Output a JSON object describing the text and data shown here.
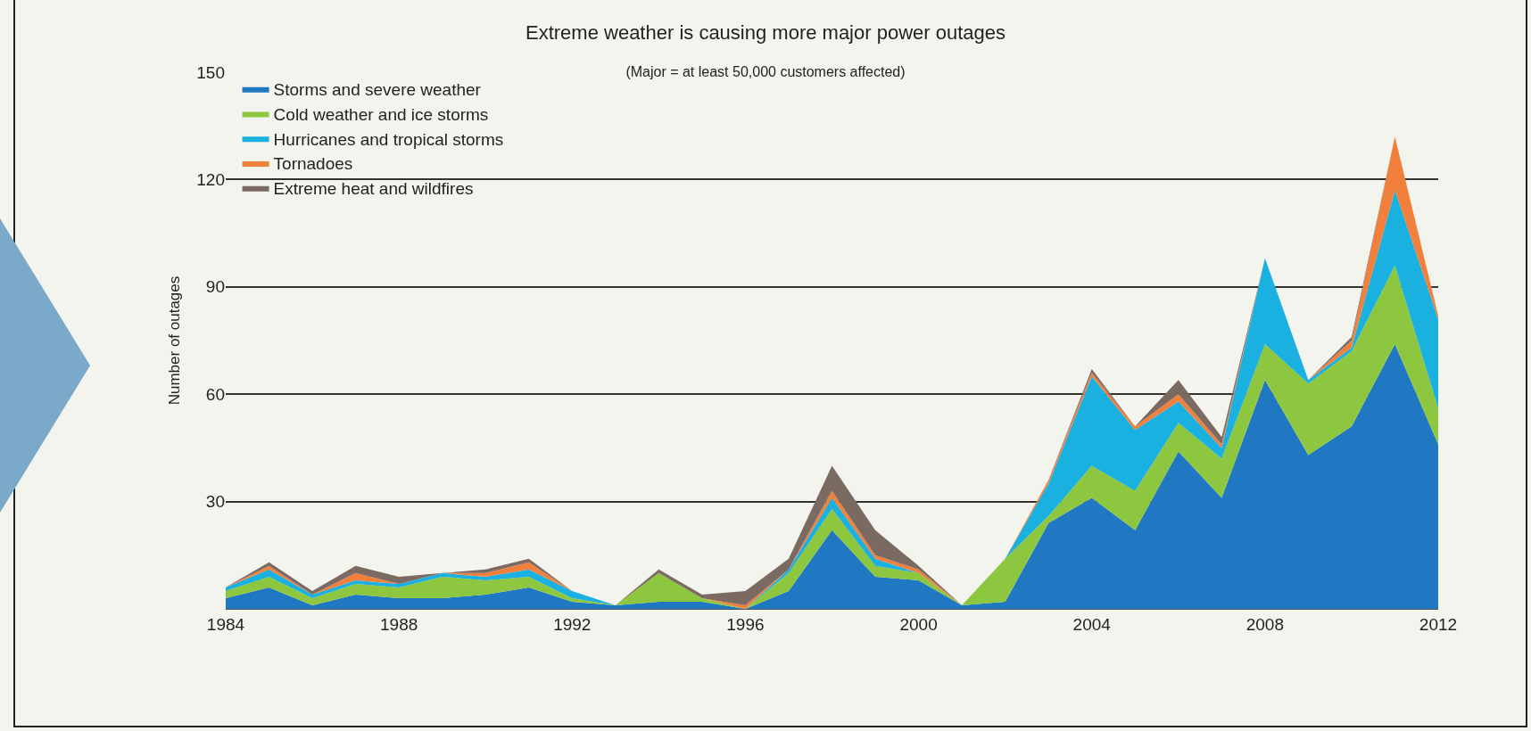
{
  "chart_data": {
    "type": "area",
    "title": "Extreme weather is causing more major power outages",
    "subtitle": "(Major = at least 50,000 customers affected)",
    "ylabel": "Number of outages",
    "x": [
      1984,
      1985,
      1986,
      1987,
      1988,
      1989,
      1990,
      1991,
      1992,
      1993,
      1994,
      1995,
      1996,
      1997,
      1998,
      1999,
      2000,
      2001,
      2002,
      2003,
      2004,
      2005,
      2006,
      2007,
      2008,
      2009,
      2010,
      2011,
      2012
    ],
    "stacked": true,
    "series": [
      {
        "name": "Storms and severe weather",
        "color": "#1f78c1",
        "values": [
          3,
          6,
          1,
          4,
          3,
          3,
          4,
          6,
          2,
          1,
          2,
          2,
          0,
          5,
          22,
          9,
          8,
          1,
          2,
          24,
          31,
          22,
          44,
          31,
          64,
          43,
          51,
          74,
          46
        ]
      },
      {
        "name": "Cold weather and ice storms",
        "color": "#8dc63f",
        "values": [
          2,
          3,
          2,
          3,
          3,
          6,
          4,
          3,
          1,
          0,
          8,
          1,
          0,
          5,
          6,
          3,
          2,
          0,
          12,
          2,
          9,
          11,
          8,
          11,
          10,
          20,
          21,
          22,
          10
        ]
      },
      {
        "name": "Hurricanes and tropical storms",
        "color": "#1ab0e0",
        "values": [
          1,
          2,
          1,
          1,
          1,
          1,
          1,
          2,
          2,
          0,
          0,
          0,
          0,
          1,
          3,
          2,
          0,
          0,
          0,
          9,
          25,
          17,
          6,
          3,
          24,
          1,
          1,
          21,
          25
        ]
      },
      {
        "name": "Tornadoes",
        "color": "#f0803c",
        "values": [
          0,
          1,
          0,
          2,
          0,
          0,
          1,
          2,
          0,
          0,
          0,
          0,
          1,
          0,
          2,
          1,
          1,
          0,
          0,
          1,
          1,
          1,
          2,
          1,
          0,
          0,
          2,
          15,
          1
        ]
      },
      {
        "name": "Extreme heat and wildfires",
        "color": "#7a6a62",
        "values": [
          0,
          1,
          1,
          2,
          2,
          0,
          1,
          1,
          0,
          0,
          1,
          1,
          4,
          3,
          7,
          7,
          1,
          0,
          0,
          0,
          1,
          0,
          4,
          2,
          0,
          0,
          1,
          0,
          0
        ]
      }
    ],
    "xlim": [
      1984,
      2012
    ],
    "xticks": [
      1984,
      1988,
      1992,
      1996,
      2000,
      2004,
      2008,
      2012
    ],
    "ylim": [
      0,
      150
    ],
    "yticks": [
      30,
      60,
      90,
      120,
      150
    ],
    "grid": "y",
    "legend": "top left"
  }
}
